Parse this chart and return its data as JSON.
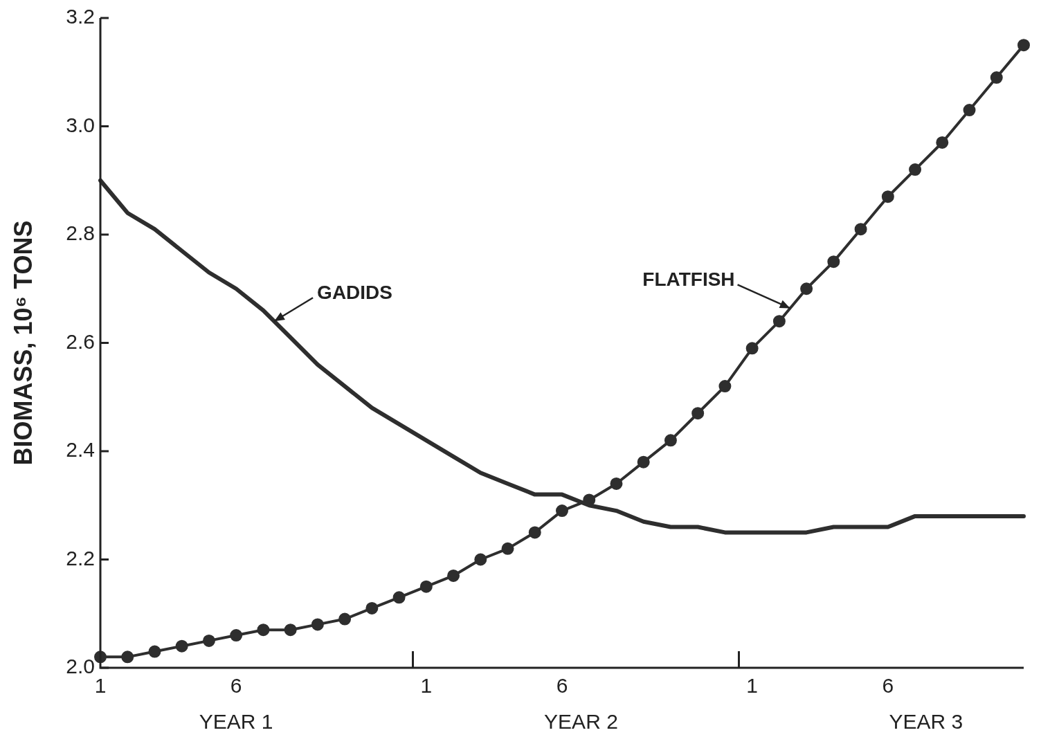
{
  "chart_data": {
    "type": "line",
    "ylabel": "BIOMASS, 10⁶ TONS",
    "categories": [
      "1",
      null,
      null,
      null,
      null,
      "6",
      null,
      null,
      null,
      null,
      null,
      null,
      "1",
      null,
      null,
      null,
      null,
      "6",
      null,
      null,
      null,
      null,
      null,
      null,
      "1",
      null,
      null,
      null,
      null,
      "6",
      null,
      null,
      null,
      null,
      null
    ],
    "series": [
      {
        "name": "GADIDS",
        "color": "#2e2e2e",
        "marker": "none",
        "values": [
          2.9,
          2.84,
          2.81,
          2.77,
          2.73,
          2.7,
          2.66,
          2.61,
          2.56,
          2.52,
          2.48,
          2.45,
          2.42,
          2.39,
          2.36,
          2.34,
          2.32,
          2.32,
          2.3,
          2.29,
          2.27,
          2.26,
          2.26,
          2.25,
          2.25,
          2.25,
          2.25,
          2.26,
          2.26,
          2.26,
          2.28,
          2.28,
          2.28,
          2.28,
          2.28
        ]
      },
      {
        "name": "FLATFISH",
        "color": "#2e2e2e",
        "marker": "circle",
        "values": [
          2.02,
          2.02,
          2.03,
          2.04,
          2.05,
          2.06,
          2.07,
          2.07,
          2.08,
          2.09,
          2.11,
          2.13,
          2.15,
          2.17,
          2.2,
          2.22,
          2.25,
          2.29,
          2.31,
          2.34,
          2.38,
          2.42,
          2.47,
          2.52,
          2.59,
          2.64,
          2.7,
          2.75,
          2.81,
          2.87,
          2.92,
          2.97,
          3.03,
          3.09,
          3.15
        ]
      }
    ],
    "ylim": [
      2.0,
      3.2
    ],
    "yticks": [
      {
        "value": 2.0,
        "label": "2.0"
      },
      {
        "value": 2.2,
        "label": "2.2"
      },
      {
        "value": 2.4,
        "label": "2.4"
      },
      {
        "value": 2.6,
        "label": "2.6"
      },
      {
        "value": 2.8,
        "label": "2.8"
      },
      {
        "value": 3.0,
        "label": "3.0"
      },
      {
        "value": 3.2,
        "label": "3.2"
      }
    ],
    "annotations": [
      "YEAR 1",
      "YEAR 2",
      "YEAR 3"
    ],
    "grid": false,
    "legend": false,
    "line_style": "solid"
  }
}
